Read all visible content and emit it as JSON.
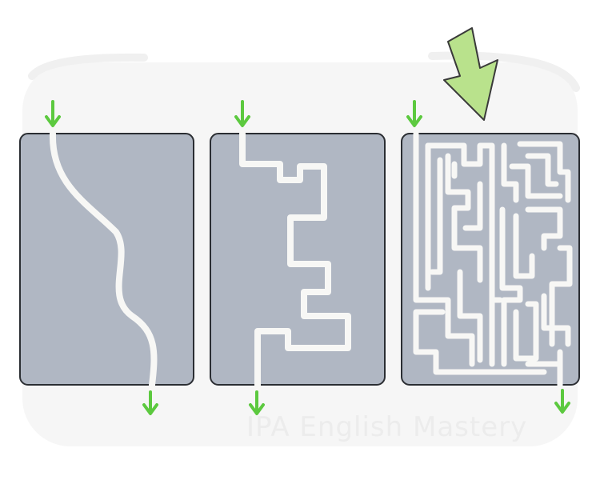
{
  "watermark": "IPA English Mastery",
  "panels": [
    {
      "name": "simple-path-panel",
      "path_style": "smooth-curve"
    },
    {
      "name": "stepped-path-panel",
      "path_style": "right-angle-steps"
    },
    {
      "name": "maze-panel",
      "path_style": "dense-maze"
    }
  ],
  "colors": {
    "panel_fill": "#b0b7c3",
    "panel_stroke": "#2b2e33",
    "path": "#f7f7f5",
    "arrow": "#5cc93f",
    "big_arrow_fill": "#b9e28c",
    "big_arrow_stroke": "#3a3a3a",
    "backdrop": "#f6f6f6"
  },
  "icons": {
    "entry_arrow": "arrow-down-icon",
    "highlight_arrow": "big-arrow-icon"
  }
}
